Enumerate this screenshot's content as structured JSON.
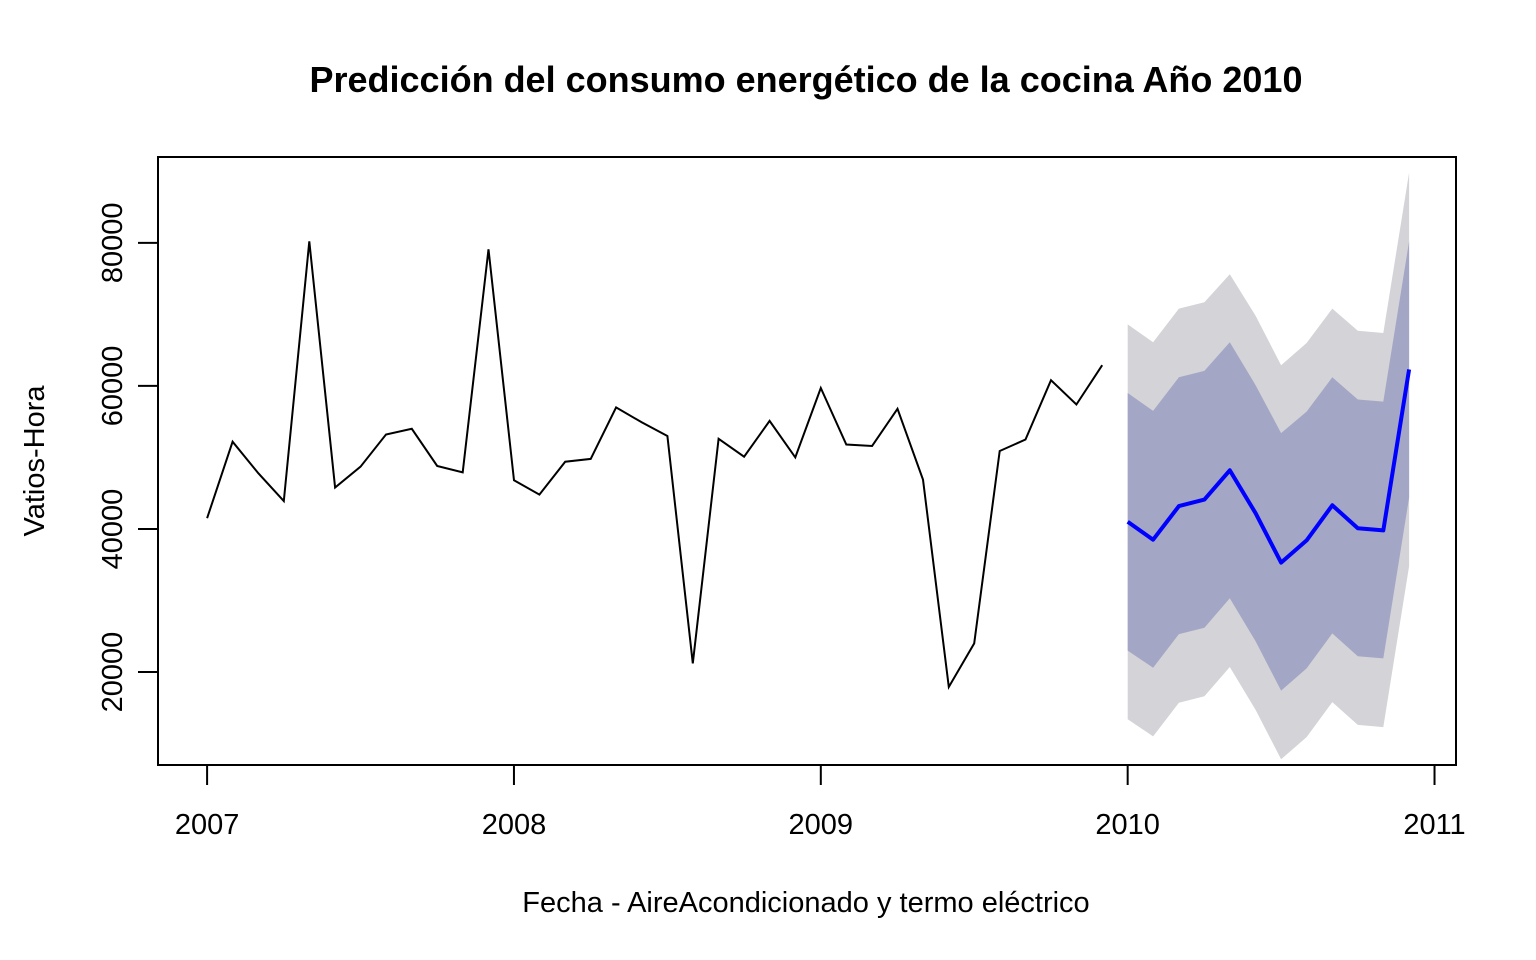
{
  "colors": {
    "history_line": "#000000",
    "forecast_line": "#0000ff",
    "band_80": "#a3a6c5",
    "band_95": "#d3d3d8",
    "axis": "#000000",
    "background": "#ffffff"
  },
  "chart_data": {
    "type": "line",
    "title": "Predicción del consumo energético de la cocina  Año 2010",
    "xlabel": "Fecha - AireAcondicionado y termo eléctrico",
    "ylabel": "Vatios-Hora",
    "xlim": [
      2006.84,
      2011.07
    ],
    "ylim": [
      7000,
      92000
    ],
    "x_ticks": [
      2007,
      2008,
      2009,
      2010,
      2011
    ],
    "x_tick_labels": [
      "2007",
      "2008",
      "2009",
      "2010",
      "2011"
    ],
    "y_ticks": [
      20000,
      40000,
      60000,
      80000
    ],
    "y_tick_labels": [
      "20000",
      "40000",
      "60000",
      "80000"
    ],
    "grid": false,
    "legend": "none",
    "history": {
      "x": [
        2007.0,
        2007.083,
        2007.167,
        2007.25,
        2007.333,
        2007.417,
        2007.5,
        2007.583,
        2007.667,
        2007.75,
        2007.833,
        2007.917,
        2008.0,
        2008.083,
        2008.167,
        2008.25,
        2008.333,
        2008.417,
        2008.5,
        2008.583,
        2008.667,
        2008.75,
        2008.833,
        2008.917,
        2009.0,
        2009.083,
        2009.167,
        2009.25,
        2009.333,
        2009.417,
        2009.5,
        2009.583,
        2009.667,
        2009.75,
        2009.833,
        2009.917
      ],
      "y": [
        41500,
        52200,
        47800,
        43900,
        80200,
        45800,
        48700,
        53200,
        54000,
        48800,
        47900,
        79100,
        46800,
        44800,
        49400,
        49800,
        57000,
        54900,
        53000,
        21200,
        52600,
        50100,
        55100,
        50000,
        59700,
        51800,
        51600,
        56800,
        46900,
        17900,
        24000,
        50900,
        52500,
        60800,
        57400,
        62900
      ]
    },
    "forecast": {
      "x": [
        2010.0,
        2010.083,
        2010.167,
        2010.25,
        2010.333,
        2010.417,
        2010.5,
        2010.583,
        2010.667,
        2010.75,
        2010.833,
        2010.917
      ],
      "mean": [
        41000,
        38500,
        43200,
        44100,
        48200,
        42200,
        35300,
        38400,
        43300,
        40100,
        39800,
        62300
      ],
      "lo80": [
        23000,
        20600,
        25300,
        26200,
        30300,
        24300,
        17400,
        20500,
        25400,
        22200,
        21900,
        44400
      ],
      "hi80": [
        59000,
        56500,
        61200,
        62100,
        66100,
        60100,
        53400,
        56400,
        61200,
        58100,
        57800,
        80200
      ],
      "lo95": [
        13400,
        11000,
        15700,
        16600,
        20700,
        14700,
        7800,
        10900,
        15800,
        12600,
        12300,
        34800
      ],
      "hi95": [
        68600,
        66100,
        70800,
        71700,
        75600,
        69800,
        62900,
        66000,
        70800,
        67700,
        67400,
        89800
      ]
    }
  }
}
